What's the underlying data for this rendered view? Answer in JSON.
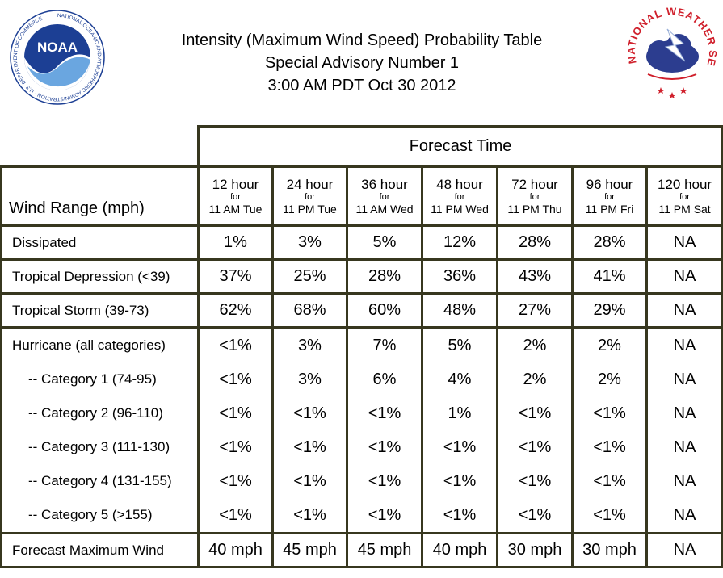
{
  "title": {
    "line1": "Intensity (Maximum Wind Speed) Probability Table",
    "line2": "Special Advisory Number 1",
    "line3": "3:00 AM PDT Oct 30 2012"
  },
  "logos": {
    "noaa": {
      "text": "NOAA",
      "ring_text": "NATIONAL OCEANIC AND ATMOSPHERIC ADMINISTRATION · U.S. DEPARTMENT OF COMMERCE"
    },
    "nws": {
      "ring_text": "NATIONAL WEATHER SERVICE"
    }
  },
  "colors": {
    "border": "#37371f",
    "noaa_blue": "#1c3f94",
    "nws_red": "#d0202c"
  },
  "table": {
    "forecast_time_label": "Forecast Time",
    "wind_range_label": "Wind Range (mph)",
    "columns": [
      {
        "hour": "12 hour",
        "for": "for",
        "time": "11 AM Tue"
      },
      {
        "hour": "24 hour",
        "for": "for",
        "time": "11 PM Tue"
      },
      {
        "hour": "36 hour",
        "for": "for",
        "time": "11 AM Wed"
      },
      {
        "hour": "48 hour",
        "for": "for",
        "time": "11 PM Wed"
      },
      {
        "hour": "72 hour",
        "for": "for",
        "time": "11 PM Thu"
      },
      {
        "hour": "96 hour",
        "for": "for",
        "time": "11 PM Fri"
      },
      {
        "hour": "120 hour",
        "for": "for",
        "time": "11 PM Sat"
      }
    ],
    "rows": [
      {
        "label": "Dissipated",
        "values": [
          "1%",
          "3%",
          "5%",
          "12%",
          "28%",
          "28%",
          "NA"
        ]
      },
      {
        "label": "Tropical Depression (<39)",
        "values": [
          "37%",
          "25%",
          "28%",
          "36%",
          "43%",
          "41%",
          "NA"
        ]
      },
      {
        "label": "Tropical Storm (39-73)",
        "values": [
          "62%",
          "68%",
          "60%",
          "48%",
          "27%",
          "29%",
          "NA"
        ]
      }
    ],
    "hurricane_group": [
      {
        "label": "Hurricane (all categories)",
        "values": [
          "<1%",
          "3%",
          "7%",
          "5%",
          "2%",
          "2%",
          "NA"
        ]
      },
      {
        "label": "-- Category 1 (74-95)",
        "values": [
          "<1%",
          "3%",
          "6%",
          "4%",
          "2%",
          "2%",
          "NA"
        ]
      },
      {
        "label": "-- Category 2 (96-110)",
        "values": [
          "<1%",
          "<1%",
          "<1%",
          "1%",
          "<1%",
          "<1%",
          "NA"
        ]
      },
      {
        "label": "-- Category 3 (111-130)",
        "values": [
          "<1%",
          "<1%",
          "<1%",
          "<1%",
          "<1%",
          "<1%",
          "NA"
        ]
      },
      {
        "label": "-- Category 4 (131-155)",
        "values": [
          "<1%",
          "<1%",
          "<1%",
          "<1%",
          "<1%",
          "<1%",
          "NA"
        ]
      },
      {
        "label": "-- Category 5 (>155)",
        "values": [
          "<1%",
          "<1%",
          "<1%",
          "<1%",
          "<1%",
          "<1%",
          "NA"
        ]
      }
    ],
    "max_wind": {
      "label": "Forecast Maximum Wind",
      "values": [
        "40 mph",
        "45 mph",
        "45 mph",
        "40 mph",
        "30 mph",
        "30 mph",
        "NA"
      ]
    }
  }
}
